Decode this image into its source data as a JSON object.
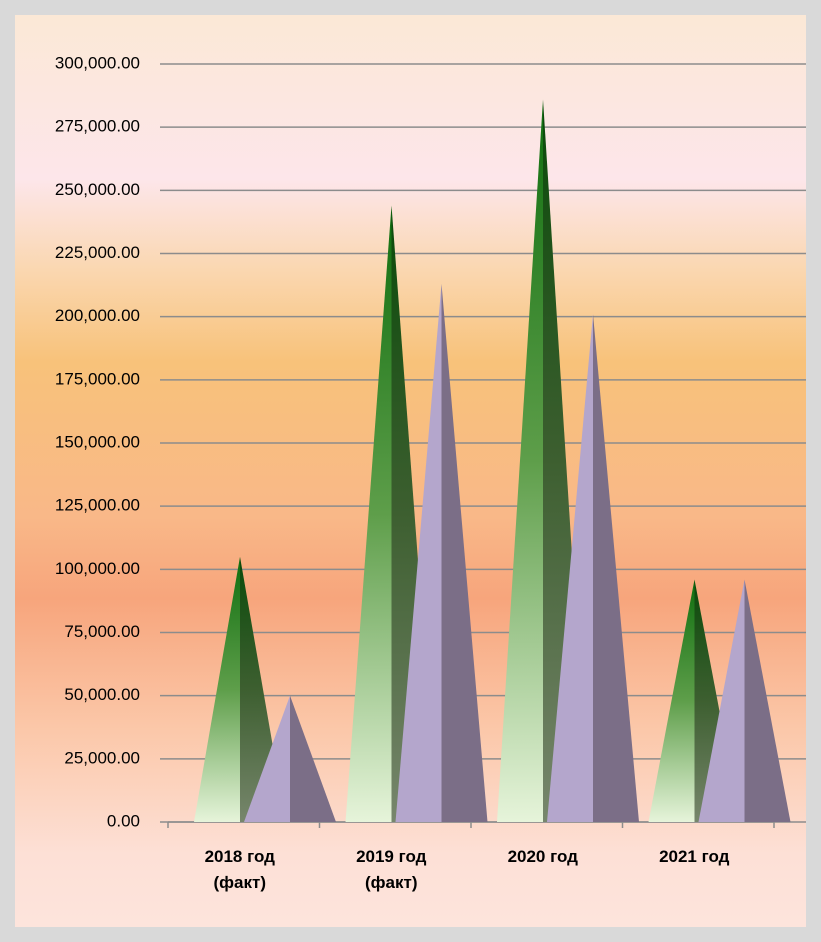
{
  "chart_data": {
    "type": "pyramid-bar",
    "categories": [
      "2018 год (факт)",
      "2019 год (факт)",
      "2020 год",
      "2021 год"
    ],
    "series": [
      {
        "color": "#1a7a1a",
        "values": [
          105000,
          244000,
          286000,
          96000
        ]
      },
      {
        "color": "#b4a6cc",
        "values": [
          50000,
          213000,
          201000,
          96000
        ]
      }
    ],
    "ylim": [
      0,
      300000
    ],
    "yticks": [
      {
        "value": 0,
        "label": "0.00"
      },
      {
        "value": 25000,
        "label": "25,000.00"
      },
      {
        "value": 50000,
        "label": "50,000.00"
      },
      {
        "value": 75000,
        "label": "75,000.00"
      },
      {
        "value": 100000,
        "label": "100,000.00"
      },
      {
        "value": 125000,
        "label": "125,000.00"
      },
      {
        "value": 150000,
        "label": "150,000.00"
      },
      {
        "value": 175000,
        "label": "175,000.00"
      },
      {
        "value": 200000,
        "label": "200,000.00"
      },
      {
        "value": 225000,
        "label": "225,000.00"
      },
      {
        "value": 250000,
        "label": "250,000.00"
      },
      {
        "value": 275000,
        "label": "275,000.00"
      },
      {
        "value": 300000,
        "label": "300,000.00"
      }
    ],
    "grid": true
  }
}
